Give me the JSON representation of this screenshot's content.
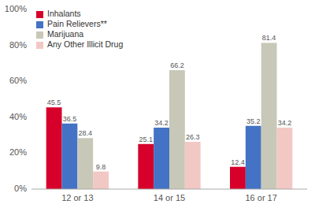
{
  "chart_data": {
    "type": "bar",
    "categories": [
      "12 or 13",
      "14 or 15",
      "16 or 17"
    ],
    "series": [
      {
        "name": "Inhalants",
        "color": "#d6002a",
        "values": [
          45.5,
          25.1,
          12.4
        ]
      },
      {
        "name": "Pain Relievers**",
        "color": "#4472c4",
        "values": [
          36.5,
          34.2,
          35.2
        ]
      },
      {
        "name": "Marijuana",
        "color": "#c8c8b8",
        "values": [
          28.4,
          66.2,
          81.4
        ]
      },
      {
        "name": "Any Other Illicit Drug",
        "color": "#f2c8c4",
        "values": [
          9.8,
          26.3,
          34.2
        ]
      }
    ],
    "ylim": [
      0,
      100
    ],
    "yticks": [
      {
        "value": 0,
        "label": "0%"
      },
      {
        "value": 20,
        "label": "20%"
      },
      {
        "value": 40,
        "label": "40%"
      },
      {
        "value": 60,
        "label": "60%"
      },
      {
        "value": 80,
        "label": "80%"
      },
      {
        "value": 100,
        "label": "100%"
      }
    ],
    "grid": false,
    "legend": "upper left",
    "data_labels": true
  }
}
